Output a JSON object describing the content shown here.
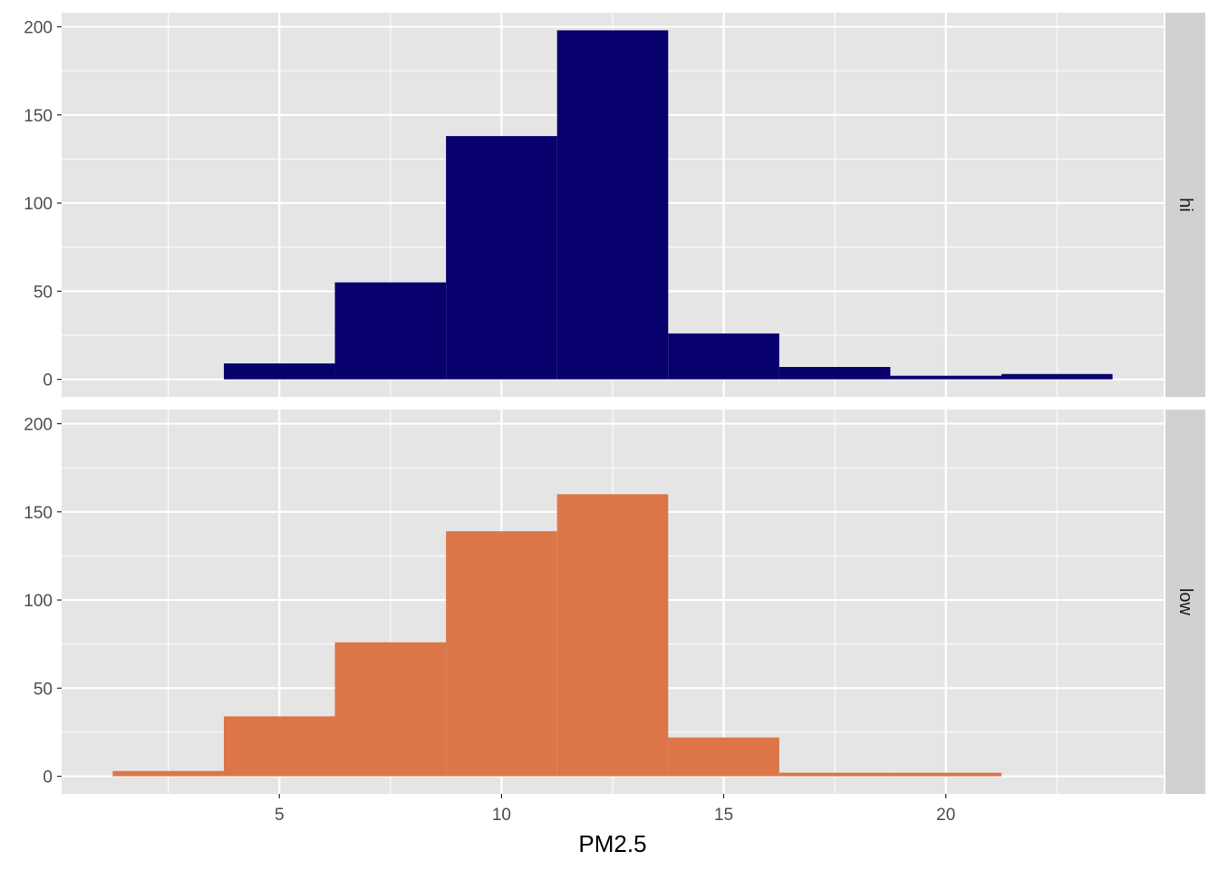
{
  "chart_data": {
    "type": "bar",
    "subtype": "faceted-histogram",
    "xlabel": "PM2.5",
    "ylabel": "",
    "xlim": [
      0.1,
      24.9
    ],
    "ylim": [
      -10,
      208
    ],
    "x_ticks": [
      5,
      10,
      15,
      20
    ],
    "y_ticks": [
      0,
      50,
      100,
      150,
      200
    ],
    "bin_width": 2.5,
    "bin_edges": [
      1.25,
      3.75,
      6.25,
      8.75,
      11.25,
      13.75,
      16.25,
      18.75,
      21.25,
      23.75
    ],
    "facets": [
      {
        "name": "hi",
        "strip_label": "hi",
        "color": "#08006c",
        "counts": [
          0,
          9,
          55,
          138,
          198,
          26,
          7,
          2,
          3
        ]
      },
      {
        "name": "low",
        "strip_label": "low",
        "color": "#dc7649",
        "counts": [
          3,
          34,
          76,
          139,
          160,
          22,
          2,
          2,
          0
        ]
      }
    ]
  },
  "theme": {
    "panel_background": "#e5e5e5",
    "grid_major": "#ffffff",
    "strip_background": "#d1d1d1",
    "tick_color": "#333333"
  }
}
